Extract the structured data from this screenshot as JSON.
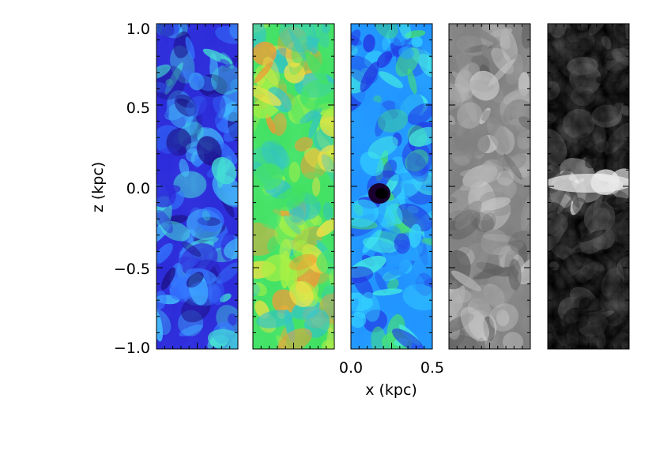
{
  "figure": {
    "y_axis": {
      "label": "z (kpc)",
      "ticks": [
        "1.0",
        "0.5",
        "0.0",
        "−0.5",
        "−1.0"
      ],
      "range": [
        -1.0,
        1.0
      ]
    },
    "x_axis": {
      "label": "x (kpc)",
      "ticks": [
        "0.0",
        "0.5"
      ],
      "range": [
        0.0,
        0.5
      ]
    },
    "panels": [
      {
        "colormap": "rainbow-dark-blue",
        "colors": [
          "#1a0f7a",
          "#2a2ad8",
          "#3070ff",
          "#40c0ff",
          "#40e0d0"
        ]
      },
      {
        "colormap": "rainbow-green-yellow",
        "colors": [
          "#30c0c0",
          "#40e060",
          "#a0f040",
          "#f0e040",
          "#f09030"
        ]
      },
      {
        "colormap": "rainbow-cyan",
        "colors": [
          "#2030e0",
          "#2090ff",
          "#30d0ff",
          "#40f0e0",
          "#40e060"
        ]
      },
      {
        "colormap": "grayscale-mid",
        "colors": [
          "#5a5a5a",
          "#7a7a7a",
          "#8e8e8e",
          "#a6a6a6",
          "#c2c2c2"
        ]
      },
      {
        "colormap": "grayscale-dark",
        "colors": [
          "#000000",
          "#1a1a1a",
          "#383838",
          "#6a6a6a",
          "#f0f0f0"
        ]
      }
    ]
  }
}
